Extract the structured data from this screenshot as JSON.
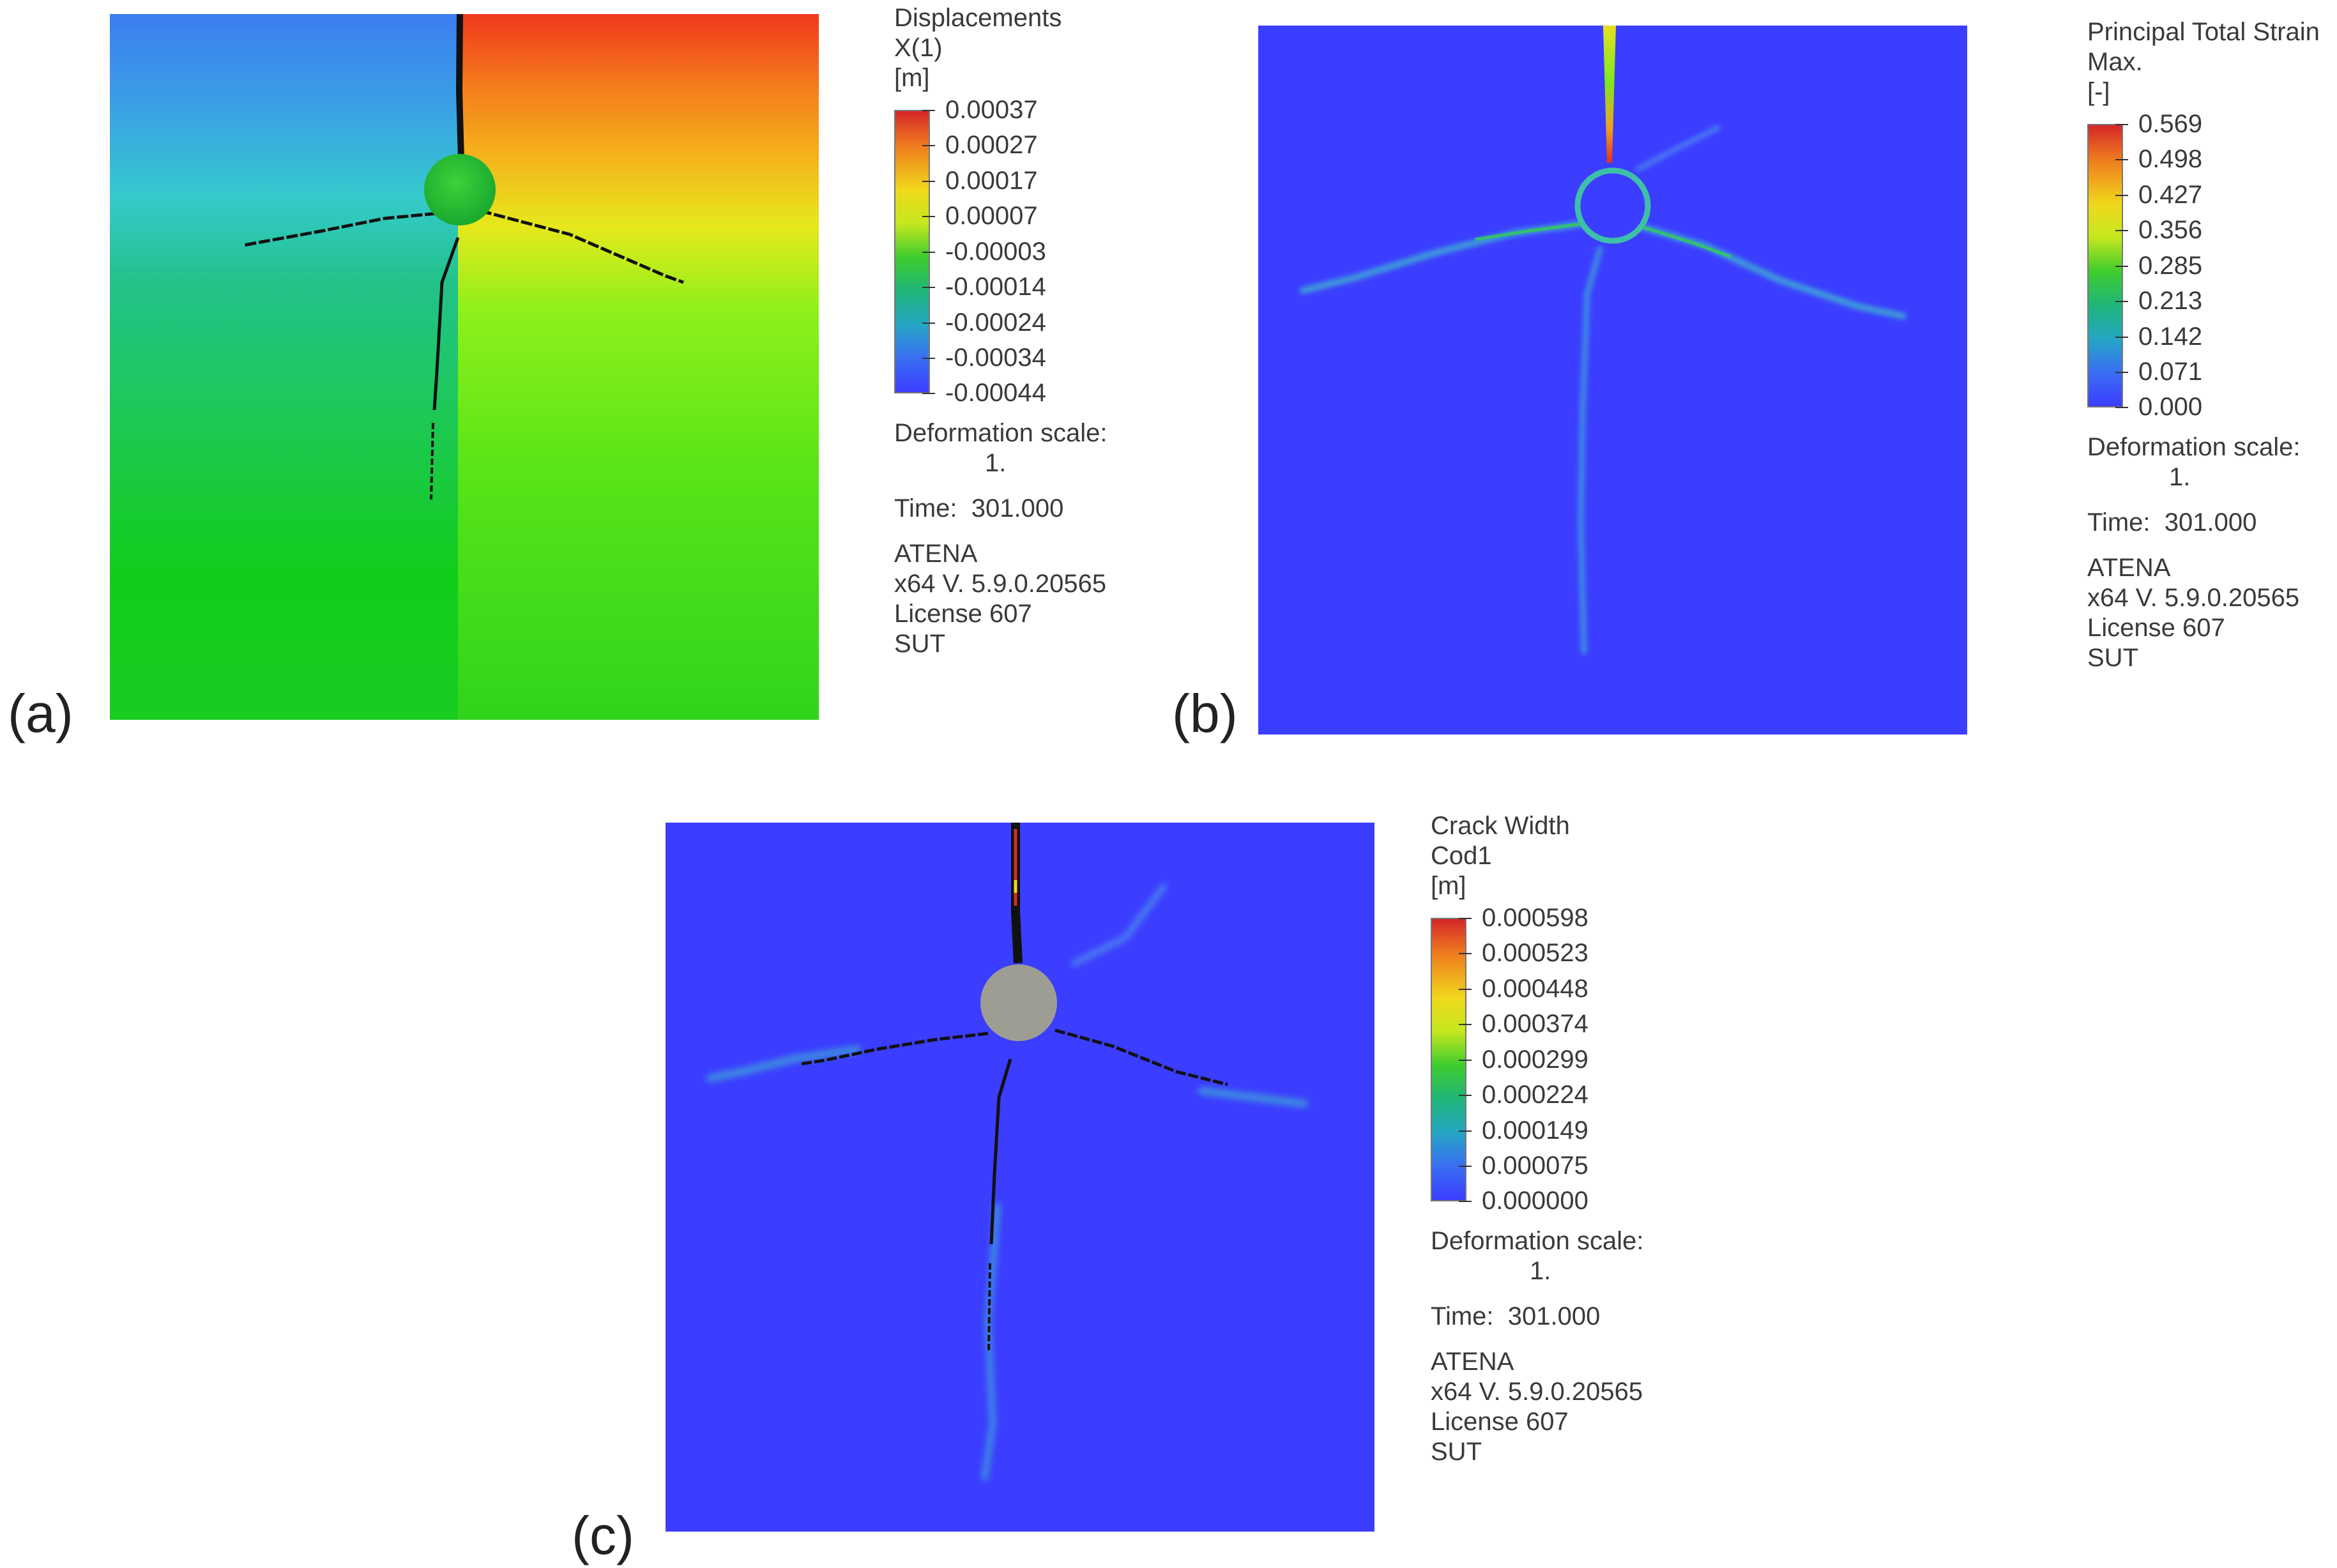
{
  "panels": [
    {
      "label": "(a)",
      "legend": {
        "title_lines": [
          "Displacements",
          "X(1)",
          "[m]"
        ],
        "ticks": [
          "0.00037",
          "0.00027",
          "0.00017",
          "0.00007",
          "-0.00003",
          "-0.00014",
          "-0.00024",
          "-0.00034",
          "-0.00044"
        ],
        "deformation_label": "Deformation scale:",
        "deformation_value": "1.",
        "time_label": "Time:",
        "time_value": "301.000",
        "software": "ATENA",
        "version": "x64 V. 5.9.0.20565",
        "license": "License 607",
        "institution": "SUT"
      }
    },
    {
      "label": "(b)",
      "legend": {
        "title_lines": [
          "Principal Total Strain",
          "Max.",
          "[-]"
        ],
        "ticks": [
          "0.569",
          "0.498",
          "0.427",
          "0.356",
          "0.285",
          "0.213",
          "0.142",
          "0.071",
          "0.000"
        ],
        "deformation_label": "Deformation scale:",
        "deformation_value": "1.",
        "time_label": "Time:",
        "time_value": "301.000",
        "software": "ATENA",
        "version": "x64 V. 5.9.0.20565",
        "license": "License 607",
        "institution": "SUT"
      }
    },
    {
      "label": "(c)",
      "legend": {
        "title_lines": [
          "Crack Width",
          "Cod1",
          "[m]"
        ],
        "ticks": [
          "0.000598",
          "0.000523",
          "0.000448",
          "0.000374",
          "0.000299",
          "0.000224",
          "0.000149",
          "0.000075",
          "0.000000"
        ],
        "deformation_label": "Deformation scale:",
        "deformation_value": "1.",
        "time_label": "Time:",
        "time_value": "301.000",
        "software": "ATENA",
        "version": "x64 V. 5.9.0.20565",
        "license": "License 607",
        "institution": "SUT"
      }
    }
  ],
  "colors": {
    "scale_max": "#d4262a",
    "scale_mid": "#3fcc2e",
    "scale_min": "#3b3dff",
    "background_field": "#3b3dff",
    "crack": "#111111",
    "inclusion_c": "#9e9d94"
  }
}
